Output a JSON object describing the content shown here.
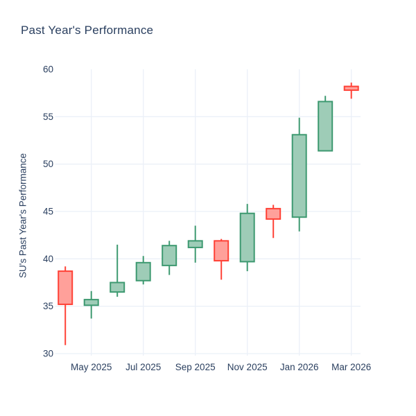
{
  "chart_data": {
    "type": "candlestick",
    "title": "Past Year's Performance",
    "ylabel": "SU's Past Year's Performance",
    "xlabel": "",
    "categories": [
      "Apr 2025",
      "May 2025",
      "Jun 2025",
      "Jul 2025",
      "Aug 2025",
      "Sep 2025",
      "Oct 2025",
      "Nov 2025",
      "Dec 2025",
      "Jan 2026",
      "Feb 2026",
      "Mar 2026"
    ],
    "series": [
      {
        "month": "Apr 2025",
        "open": 38.7,
        "high": 39.2,
        "low": 30.9,
        "close": 35.2,
        "direction": "decreasing"
      },
      {
        "month": "May 2025",
        "open": 35.1,
        "high": 36.6,
        "low": 33.7,
        "close": 35.7,
        "direction": "increasing"
      },
      {
        "month": "Jun 2025",
        "open": 36.5,
        "high": 41.5,
        "low": 36.0,
        "close": 37.5,
        "direction": "increasing"
      },
      {
        "month": "Jul 2025",
        "open": 37.7,
        "high": 40.3,
        "low": 37.3,
        "close": 39.6,
        "direction": "increasing"
      },
      {
        "month": "Aug 2025",
        "open": 39.3,
        "high": 41.9,
        "low": 38.3,
        "close": 41.4,
        "direction": "increasing"
      },
      {
        "month": "Sep 2025",
        "open": 41.2,
        "high": 43.5,
        "low": 39.6,
        "close": 41.9,
        "direction": "increasing"
      },
      {
        "month": "Oct 2025",
        "open": 41.9,
        "high": 42.1,
        "low": 37.8,
        "close": 39.8,
        "direction": "decreasing"
      },
      {
        "month": "Nov 2025",
        "open": 39.7,
        "high": 45.8,
        "low": 38.7,
        "close": 44.8,
        "direction": "increasing"
      },
      {
        "month": "Dec 2025",
        "open": 45.3,
        "high": 45.7,
        "low": 42.2,
        "close": 44.2,
        "direction": "decreasing"
      },
      {
        "month": "Jan 2026",
        "open": 44.4,
        "high": 54.9,
        "low": 42.9,
        "close": 53.1,
        "direction": "increasing"
      },
      {
        "month": "Feb 2026",
        "open": 51.4,
        "high": 57.2,
        "low": 51.4,
        "close": 56.6,
        "direction": "increasing"
      },
      {
        "month": "Mar 2026",
        "open": 58.2,
        "high": 58.6,
        "low": 56.9,
        "close": 57.8,
        "direction": "decreasing"
      }
    ],
    "x_tick_labels": [
      "May 2025",
      "Jul 2025",
      "Sep 2025",
      "Nov 2025",
      "Jan 2026",
      "Mar 2026"
    ],
    "x_tick_positions": [
      1,
      3,
      5,
      7,
      9,
      11
    ],
    "y_ticks": [
      30,
      35,
      40,
      45,
      50,
      55,
      60
    ],
    "y_range": [
      29.5,
      60
    ],
    "grid": true,
    "legend": "none",
    "colors": {
      "increasing_line": "#3D9970",
      "increasing_fill": "#9ECCB7",
      "decreasing_line": "#FF4136",
      "decreasing_fill": "#FFA09A",
      "grid": "#EBF0F8",
      "text": "#2A3F5F",
      "background": "#FFFFFF"
    }
  }
}
